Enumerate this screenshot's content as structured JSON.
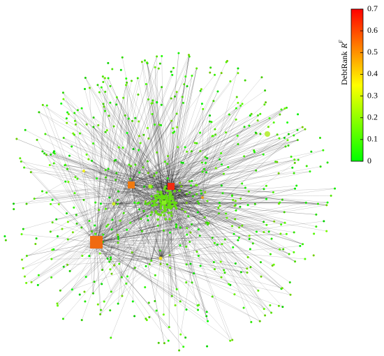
{
  "chart_data": {
    "type": "network",
    "colorbar": {
      "label": "DebtRank",
      "symbol": "R",
      "superscript": "F",
      "lim": [
        0,
        0.7
      ],
      "ticks": [
        0,
        0.1,
        0.2,
        0.3,
        0.4,
        0.5,
        0.6,
        0.7
      ],
      "colormap": [
        "#00ff00",
        "#ffff00",
        "#ff0000"
      ]
    }
  }
}
